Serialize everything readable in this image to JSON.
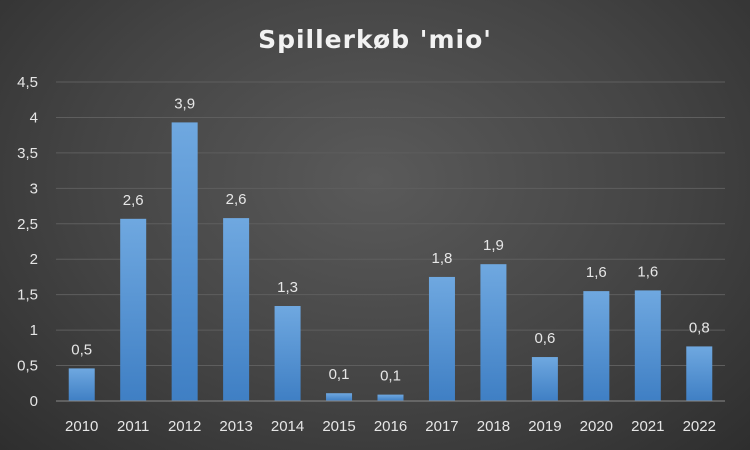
{
  "chart_data": {
    "type": "bar",
    "title": "Spillerkøb 'mio'",
    "xlabel": "",
    "ylabel": "",
    "categories": [
      "2010",
      "2011",
      "2012",
      "2013",
      "2014",
      "2015",
      "2016",
      "2017",
      "2018",
      "2019",
      "2020",
      "2021",
      "2022"
    ],
    "values": [
      0.46,
      2.57,
      3.93,
      2.58,
      1.34,
      0.11,
      0.09,
      1.75,
      1.93,
      0.62,
      1.55,
      1.56,
      0.77
    ],
    "data_labels": [
      "0,5",
      "2,6",
      "3,9",
      "2,6",
      "1,3",
      "0,1",
      "0,1",
      "1,8",
      "1,9",
      "0,6",
      "1,6",
      "1,6",
      "0,8"
    ],
    "y_ticks": [
      "0",
      "0,5",
      "1",
      "1,5",
      "2",
      "2,5",
      "3",
      "3,5",
      "4",
      "4,5"
    ],
    "ylim": [
      0,
      4.5
    ],
    "grid": true,
    "legend": "none",
    "colors": {
      "bar_top": "#6fa8e0",
      "bar_bottom": "#3f7fc4",
      "text": "#e6e6e6",
      "title": "#f2f2f2"
    }
  }
}
